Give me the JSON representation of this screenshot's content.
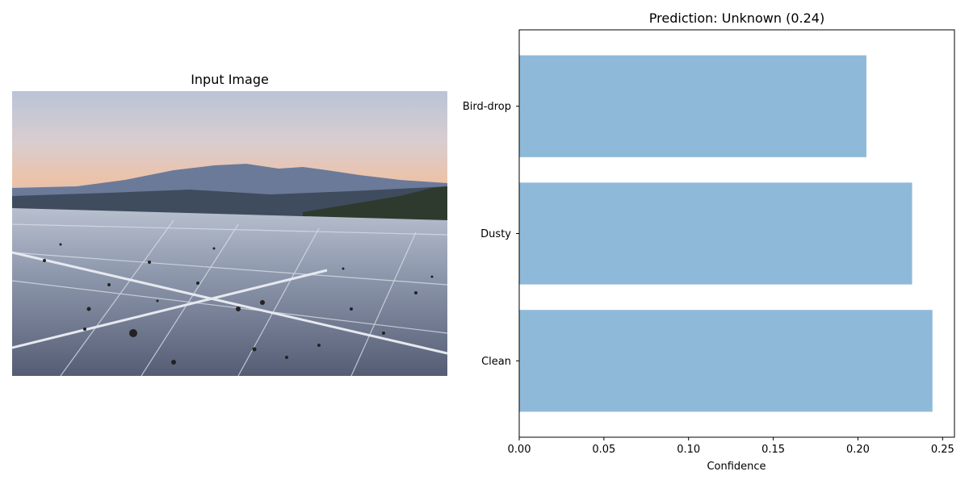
{
  "left_panel": {
    "title": "Input Image"
  },
  "chart_data": {
    "type": "bar",
    "orientation": "horizontal",
    "title": "Prediction: Unknown (0.24)",
    "xlabel": "Confidence",
    "ylabel": "",
    "categories": [
      "Clean",
      "Dusty",
      "Bird-drop"
    ],
    "values": [
      0.244,
      0.232,
      0.205
    ],
    "xlim": [
      0,
      0.257
    ],
    "xticks": [
      0.0,
      0.05,
      0.1,
      0.15,
      0.2,
      0.25
    ],
    "xtick_labels": [
      "0.00",
      "0.05",
      "0.10",
      "0.15",
      "0.20",
      "0.25"
    ],
    "bar_color": "#8fb9d9",
    "grid": false
  }
}
